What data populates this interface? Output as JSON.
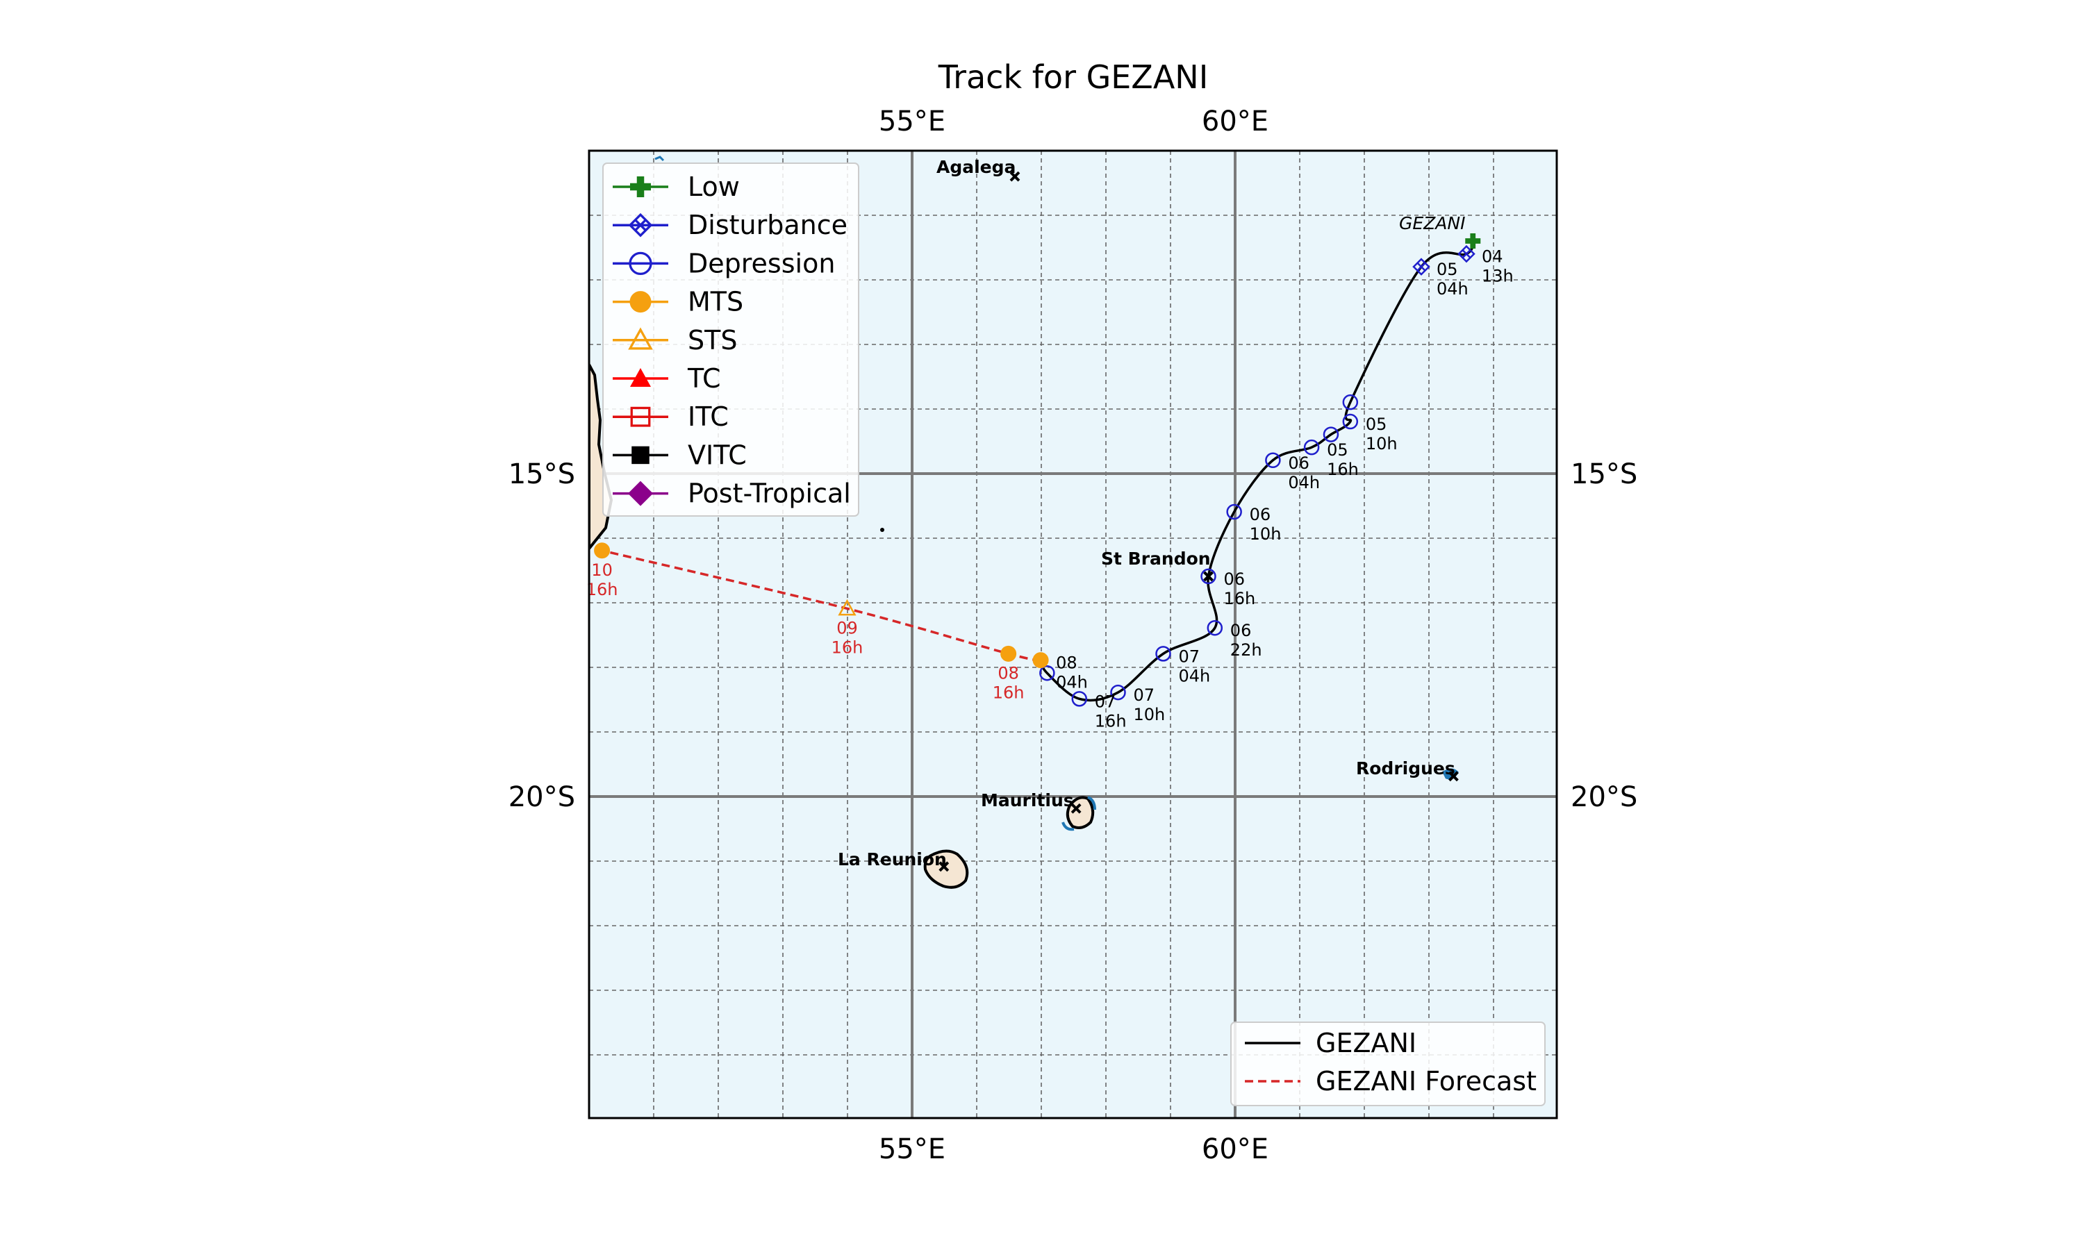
{
  "title": "Track for GEZANI",
  "x_tick_labels": [
    "55°E",
    "60°E"
  ],
  "y_tick_labels": [
    "15°S",
    "20°S"
  ],
  "places": [
    {
      "name": "Agalega",
      "lon": 56.6,
      "lat": -10.4
    },
    {
      "name": "St Brandon",
      "lon": 59.6,
      "lat": -16.6
    },
    {
      "name": "Rodrigues",
      "lon": 63.4,
      "lat": -19.7
    },
    {
      "name": "Mauritius",
      "lon": 57.55,
      "lat": -20.2
    },
    {
      "name": "La Reunion",
      "lon": 55.5,
      "lat": -21.1
    }
  ],
  "storm_name_label": "GEZANI",
  "legend_intensity": [
    {
      "label": "Low",
      "marker": "plus",
      "color": "#1a7f1a"
    },
    {
      "label": "Disturbance",
      "marker": "x-diamond",
      "color": "#1f1fcc"
    },
    {
      "label": "Depression",
      "marker": "circle-open",
      "color": "#1f1fcc"
    },
    {
      "label": "MTS",
      "marker": "circle-filled",
      "color": "#f5a00f"
    },
    {
      "label": "STS",
      "marker": "triangle-open",
      "color": "#f5a00f"
    },
    {
      "label": "TC",
      "marker": "triangle-filled",
      "color": "#ff0000"
    },
    {
      "label": "ITC",
      "marker": "square-open",
      "color": "#e01010"
    },
    {
      "label": "VITC",
      "marker": "square-filled",
      "color": "#000000"
    },
    {
      "label": "Post-Tropical",
      "marker": "diamond-filled",
      "color": "#8b008b"
    }
  ],
  "legend_tracks": [
    {
      "label": "GEZANI",
      "style": "solid",
      "color": "#000000"
    },
    {
      "label": "GEZANI Forecast",
      "style": "dashed",
      "color": "#d62728"
    }
  ],
  "chart_data": {
    "type": "scatter",
    "title": "Track for GEZANI",
    "xlim": [
      50,
      65
    ],
    "ylim": [
      -25,
      -10
    ],
    "grid": true,
    "legend_placement": [
      "upper-left",
      "lower-right"
    ],
    "series": [
      {
        "name": "GEZANI",
        "style": "solid",
        "points": [
          {
            "lon": 63.7,
            "lat": -11.4,
            "cat": "Low"
          },
          {
            "lon": 63.6,
            "lat": -11.6,
            "cat": "Disturbance",
            "label": [
              "04",
              "13h"
            ]
          },
          {
            "lon": 62.9,
            "lat": -11.8,
            "cat": "Disturbance",
            "label": [
              "05",
              "04h"
            ]
          },
          {
            "lon": 61.8,
            "lat": -13.9,
            "cat": "Depression"
          },
          {
            "lon": 61.8,
            "lat": -14.2,
            "cat": "Depression",
            "label": [
              "05",
              "10h"
            ]
          },
          {
            "lon": 61.5,
            "lat": -14.4,
            "cat": "Depression"
          },
          {
            "lon": 61.2,
            "lat": -14.6,
            "cat": "Depression",
            "label": [
              "05",
              "16h"
            ]
          },
          {
            "lon": 60.6,
            "lat": -14.8,
            "cat": "Depression",
            "label": [
              "06",
              "04h"
            ]
          },
          {
            "lon": 60.0,
            "lat": -15.6,
            "cat": "Depression",
            "label": [
              "06",
              "10h"
            ]
          },
          {
            "lon": 59.6,
            "lat": -16.6,
            "cat": "Depression",
            "label": [
              "06",
              "16h"
            ]
          },
          {
            "lon": 59.7,
            "lat": -17.4,
            "cat": "Depression",
            "label": [
              "06",
              "22h"
            ]
          },
          {
            "lon": 58.9,
            "lat": -17.8,
            "cat": "Depression",
            "label": [
              "07",
              "04h"
            ]
          },
          {
            "lon": 58.2,
            "lat": -18.4,
            "cat": "Depression",
            "label": [
              "07",
              "10h"
            ]
          },
          {
            "lon": 57.6,
            "lat": -18.5,
            "cat": "Depression",
            "label": [
              "07",
              "16h"
            ]
          },
          {
            "lon": 57.1,
            "lat": -18.1,
            "cat": "Depression"
          },
          {
            "lon": 57.0,
            "lat": -17.9,
            "cat": "MTS",
            "label": [
              "08",
              "04h"
            ]
          }
        ]
      },
      {
        "name": "GEZANI Forecast",
        "style": "dashed",
        "points": [
          {
            "lon": 57.0,
            "lat": -17.9,
            "cat": "MTS"
          },
          {
            "lon": 56.5,
            "lat": -17.8,
            "cat": "MTS",
            "label": [
              "08",
              "16h"
            ]
          },
          {
            "lon": 54.0,
            "lat": -17.1,
            "cat": "STS",
            "label": [
              "09",
              "16h"
            ]
          },
          {
            "lon": 50.2,
            "lat": -16.2,
            "cat": "MTS",
            "label": [
              "10",
              "16h"
            ]
          }
        ]
      }
    ]
  }
}
